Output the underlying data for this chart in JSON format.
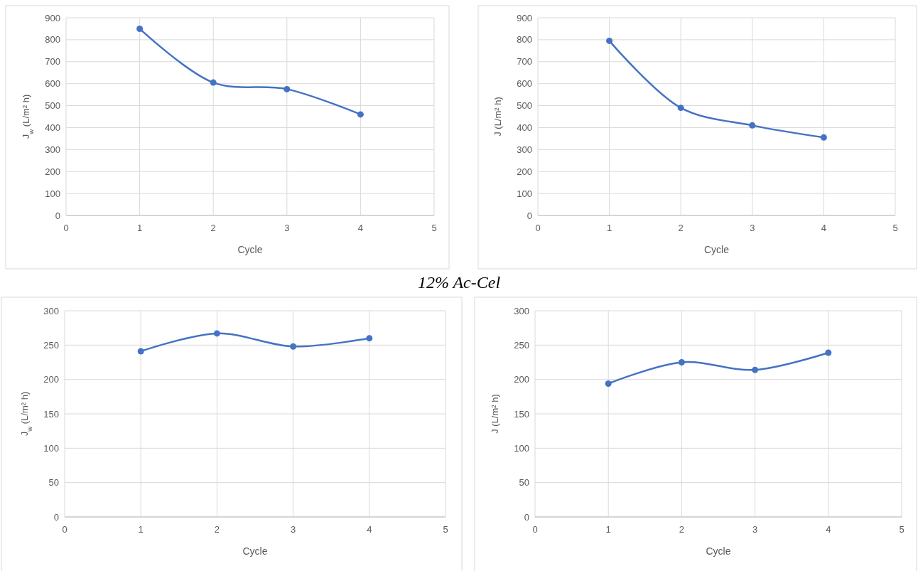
{
  "chart_data": [
    {
      "type": "line",
      "xlabel": "Cycle",
      "ylabel": "J$_{w}$ (L/m² h)",
      "x": [
        1,
        2,
        3,
        4
      ],
      "series": [
        {
          "color": "#4472c4",
          "values": [
            850,
            605,
            575,
            460
          ]
        }
      ],
      "xlim": [
        0,
        5
      ],
      "xticks": [
        0,
        1,
        2,
        3,
        4,
        5
      ],
      "ylim": [
        0,
        900
      ],
      "yticks": [
        0,
        100,
        200,
        300,
        400,
        500,
        600,
        700,
        800,
        900
      ],
      "grid": true,
      "marker": "circle",
      "line_style": "solid",
      "annotations": [
        "12% Ac-Cel"
      ]
    },
    {
      "type": "line",
      "xlabel": "Cycle",
      "ylabel": "J (L/m² h)",
      "x": [
        1,
        2,
        3,
        4
      ],
      "series": [
        {
          "color": "#4472c4",
          "values": [
            795,
            490,
            410,
            355
          ]
        }
      ],
      "xlim": [
        0,
        5
      ],
      "xticks": [
        0,
        1,
        2,
        3,
        4,
        5
      ],
      "ylim": [
        0,
        900
      ],
      "yticks": [
        0,
        100,
        200,
        300,
        400,
        500,
        600,
        700,
        800,
        900
      ],
      "grid": true,
      "marker": "circle",
      "line_style": "solid"
    },
    {
      "type": "line",
      "xlabel": "Cycle",
      "ylabel": "J$_{w}$ (L/m² h)",
      "x": [
        1,
        2,
        3,
        4
      ],
      "series": [
        {
          "color": "#4472c4",
          "values": [
            241,
            267,
            248,
            260
          ]
        }
      ],
      "xlim": [
        0,
        5
      ],
      "xticks": [
        0,
        1,
        2,
        3,
        4,
        5
      ],
      "ylim": [
        0,
        300
      ],
      "yticks": [
        0,
        50,
        100,
        150,
        200,
        250,
        300
      ],
      "grid": true,
      "marker": "circle",
      "line_style": "solid"
    },
    {
      "type": "line",
      "xlabel": "Cycle",
      "ylabel": "J (L/m² h)",
      "x": [
        1,
        2,
        3,
        4
      ],
      "series": [
        {
          "color": "#4472c4",
          "values": [
            194,
            225,
            214,
            239
          ]
        }
      ],
      "xlim": [
        0,
        5
      ],
      "xticks": [
        0,
        1,
        2,
        3,
        4,
        5
      ],
      "ylim": [
        0,
        300
      ],
      "yticks": [
        0,
        50,
        100,
        150,
        200,
        250,
        300
      ],
      "grid": true,
      "marker": "circle",
      "line_style": "solid"
    }
  ]
}
